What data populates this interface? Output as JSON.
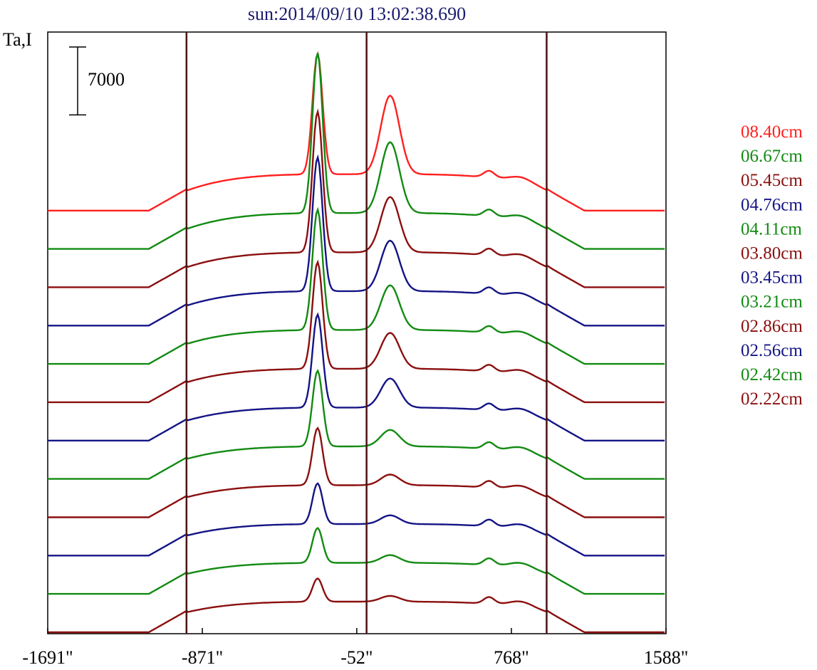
{
  "chart_data": {
    "type": "line",
    "title": "sun:2014/09/10 13:02:38.690",
    "ylabel": "Ta,I",
    "xlabel": "",
    "scale_bar_label": "7000",
    "scale_bar_value": 7000,
    "x_tick_labels": [
      "-1691\"",
      "-871\"",
      "-52\"",
      "768\"",
      "1588\""
    ],
    "x_ticks": [
      -1691,
      -871,
      -52,
      768,
      1588
    ],
    "xlim": [
      -1691,
      1588
    ],
    "vertical_markers": [
      -955,
      0,
      955
    ],
    "grid": false,
    "legend_position": "right",
    "colors": {
      "title": "#1a1a6e",
      "axis": "#000000",
      "marker": "#4a1414",
      "red": "#ff2020",
      "green": "#128a12",
      "darkred": "#8b0f0f",
      "blue": "#141486"
    },
    "legend": [
      {
        "label": "08.40cm",
        "color": "#ff2020"
      },
      {
        "label": "06.67cm",
        "color": "#128a12"
      },
      {
        "label": "05.45cm",
        "color": "#8b0f0f"
      },
      {
        "label": "04.76cm",
        "color": "#141486"
      },
      {
        "label": "04.11cm",
        "color": "#128a12"
      },
      {
        "label": "03.80cm",
        "color": "#8b0f0f"
      },
      {
        "label": "03.45cm",
        "color": "#141486"
      },
      {
        "label": "03.21cm",
        "color": "#128a12"
      },
      {
        "label": "02.86cm",
        "color": "#8b0f0f"
      },
      {
        "label": "02.56cm",
        "color": "#141486"
      },
      {
        "label": "02.42cm",
        "color": "#128a12"
      },
      {
        "label": "02.22cm",
        "color": "#8b0f0f"
      }
    ],
    "series": [
      {
        "color": "#ff2020",
        "peak": 12400,
        "sec": 8100,
        "lift": 1700
      },
      {
        "color": "#128a12",
        "peak": 16500,
        "sec": 7300,
        "lift": 1650
      },
      {
        "color": "#8b0f0f",
        "peak": 14500,
        "sec": 5700,
        "lift": 1550
      },
      {
        "color": "#141486",
        "peak": 13800,
        "sec": 5200,
        "lift": 1500
      },
      {
        "color": "#128a12",
        "peak": 12400,
        "sec": 4600,
        "lift": 1450
      },
      {
        "color": "#8b0f0f",
        "peak": 11000,
        "sec": 3700,
        "lift": 1400
      },
      {
        "color": "#141486",
        "peak": 9600,
        "sec": 3000,
        "lift": 1350
      },
      {
        "color": "#128a12",
        "peak": 7800,
        "sec": 1700,
        "lift": 1300
      },
      {
        "color": "#8b0f0f",
        "peak": 5900,
        "sec": 1100,
        "lift": 1250
      },
      {
        "color": "#141486",
        "peak": 4200,
        "sec": 900,
        "lift": 1200
      },
      {
        "color": "#128a12",
        "peak": 3600,
        "sec": 800,
        "lift": 1150
      },
      {
        "color": "#8b0f0f",
        "peak": 2400,
        "sec": 600,
        "lift": 1100
      }
    ],
    "offset_step": 3950,
    "ylim": [
      0,
      62000
    ]
  }
}
